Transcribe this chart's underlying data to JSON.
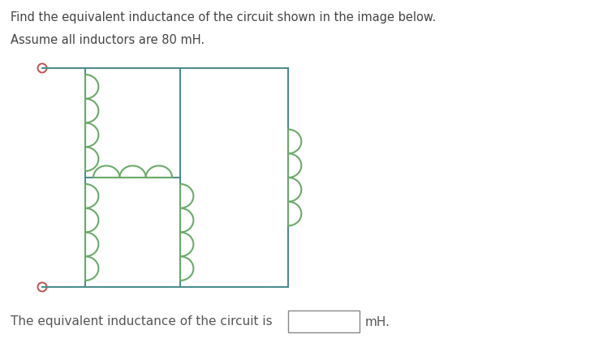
{
  "title_line1": "Find the equivalent inductance of the circuit shown in the image below.",
  "title_line2": "Assume all inductors are 80 mH.",
  "bottom_text": "The equivalent inductance of the circuit is",
  "bottom_unit": "mH.",
  "circuit_color": "#4d8c8c",
  "coil_color": "#6aab6a",
  "terminal_color": "#c0504d",
  "line_width": 1.5,
  "coil_lw": 1.5,
  "fig_width": 7.43,
  "fig_height": 4.49,
  "background": "#ffffff"
}
